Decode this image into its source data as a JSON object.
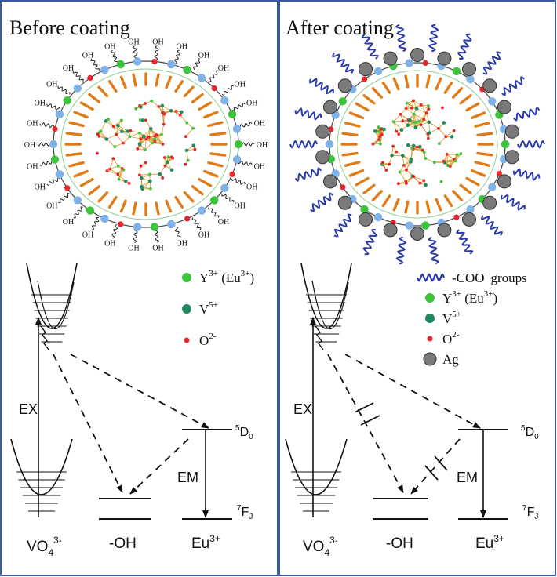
{
  "panels": {
    "left": {
      "title": "Before coating",
      "surface_group": "OH",
      "legend": [
        {
          "label": "Y",
          "sup": "3+",
          "suffix": " (Eu",
          "suffix_sup": "3+",
          "suffix_end": ")",
          "color": "#3cc43c"
        },
        {
          "label": "V",
          "sup": "5+",
          "color": "#1f8a5e"
        },
        {
          "label": "O",
          "sup": "2-",
          "color": "#e8262a"
        }
      ]
    },
    "right": {
      "title": "After coating",
      "legend": [
        {
          "label": "-COO",
          "sup": "-",
          "suffix": " groups",
          "color": "#2a3aa8",
          "kind": "wave"
        },
        {
          "label": "Y",
          "sup": "3+",
          "suffix": " (Eu",
          "suffix_sup": "3+",
          "suffix_end": ")",
          "color": "#3cc43c"
        },
        {
          "label": "V",
          "sup": "5+",
          "color": "#1f8a5e"
        },
        {
          "label": "O",
          "sup": "2-",
          "color": "#e8262a"
        },
        {
          "label": "Ag",
          "color": "#7a7a7a",
          "kind": "ag"
        }
      ]
    }
  },
  "energy": {
    "ex_label": "EX",
    "em_label": "EM",
    "vo4_base": "VO",
    "vo4_sub": "4",
    "vo4_sup": "3-",
    "oh_label": "-OH",
    "eu_base": "Eu",
    "eu_sup": "3+",
    "d0_pre": "5",
    "d0_base": "D",
    "d0_sub": "0",
    "fj_pre": "7",
    "fj_base": "F",
    "fj_sub": "J"
  },
  "colors": {
    "frame": "#3a5aa0",
    "shell": "#7fb2e6",
    "spoke": "#e07b1a",
    "coo": "#2a3aa8",
    "ag": "#7a7a7a",
    "y": "#3cc43c",
    "v": "#1f8a5e",
    "o": "#e8262a",
    "lattice": "#d99a2b"
  }
}
